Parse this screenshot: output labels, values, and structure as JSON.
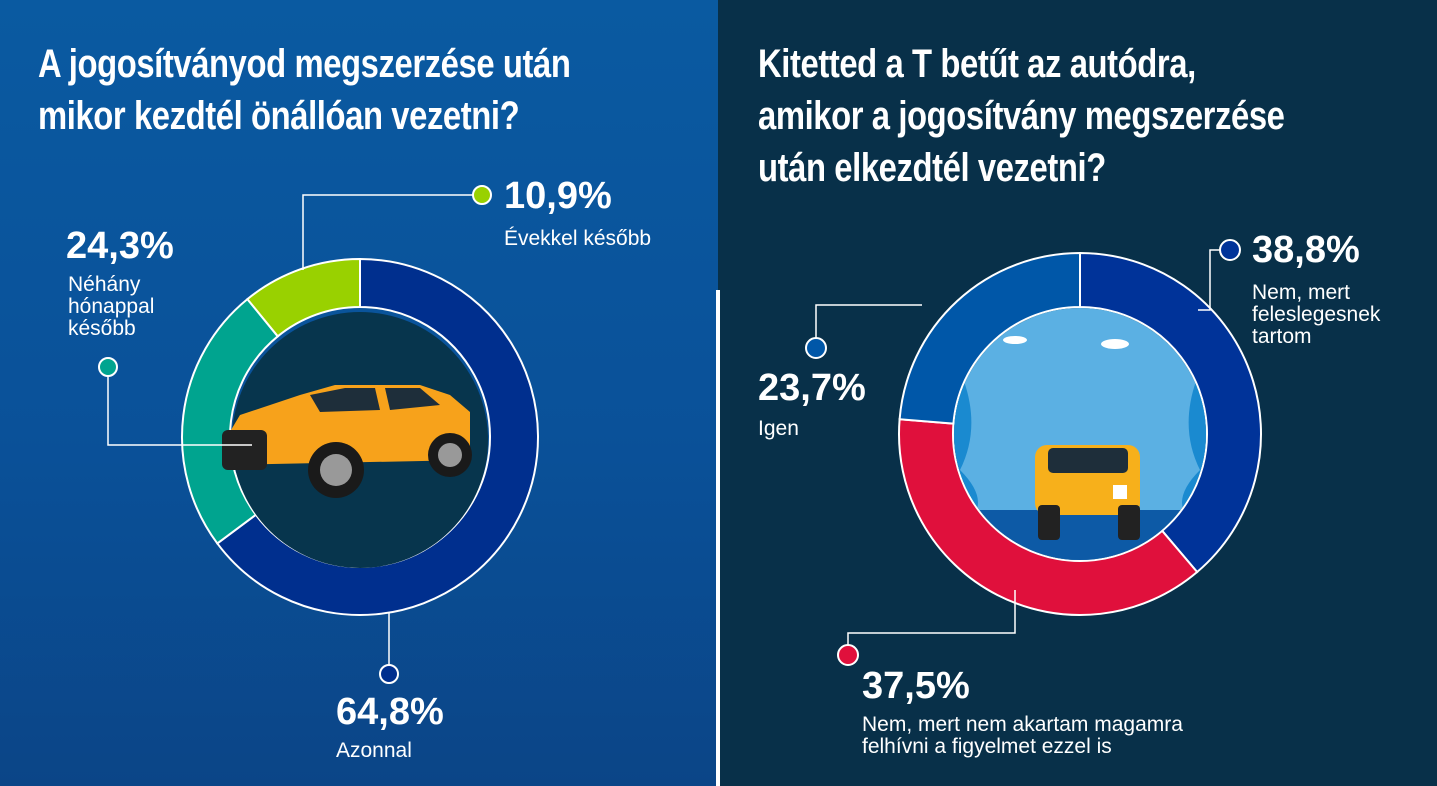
{
  "chart_data": [
    {
      "type": "pie",
      "subtype": "donut",
      "title": "A jogosítványod megszerzése után mikor kezdtél önállóan vezetni?",
      "slices": [
        {
          "label": "Azonnal",
          "value": 64.8,
          "display": "64,8%",
          "color": "#002f8e"
        },
        {
          "label": "Néhány hónappal később",
          "value": 24.3,
          "display": "24,3%",
          "color": "#00a48f"
        },
        {
          "label": "Évekkel később",
          "value": 10.9,
          "display": "10,9%",
          "color": "#99d100"
        }
      ],
      "start": "top",
      "direction": "clockwise"
    },
    {
      "type": "pie",
      "subtype": "donut",
      "title": "Kitetted a T betűt az autódra, amikor a jogosítvány megszerzése után elkezdtél vezetni?",
      "slices": [
        {
          "label": "Nem, mert feleslegesnek tartom",
          "value": 38.8,
          "display": "38,8%",
          "color": "#003399"
        },
        {
          "label": "Nem, mert nem akartam magamra felhívni a figyelmet ezzel is",
          "value": 37.5,
          "display": "37,5%",
          "color": "#e0103c"
        },
        {
          "label": "Igen",
          "value": 23.7,
          "display": "23,7%",
          "color": "#0057a8"
        }
      ],
      "start": "top",
      "direction": "clockwise"
    }
  ],
  "left": {
    "title_lines": [
      "A jogosítványod megszerzése után",
      "mikor kezdtél önállóan vezetni?"
    ],
    "labels": {
      "a": [
        "Azonnal"
      ],
      "b": [
        "Néhány",
        "hónappal",
        "később"
      ],
      "c": [
        "Évekkel később"
      ]
    }
  },
  "right": {
    "title_lines": [
      "Kitetted a T betűt az autódra,",
      "amikor a jogosítvány megszerzése",
      "után elkezdtél vezetni?"
    ],
    "labels": {
      "a": [
        "Nem, mert",
        "feleslegesnek",
        "tartom"
      ],
      "b": [
        "Nem, mert nem akartam magamra",
        "felhívni a figyelmet ezzel is"
      ],
      "c": [
        "Igen"
      ]
    }
  }
}
